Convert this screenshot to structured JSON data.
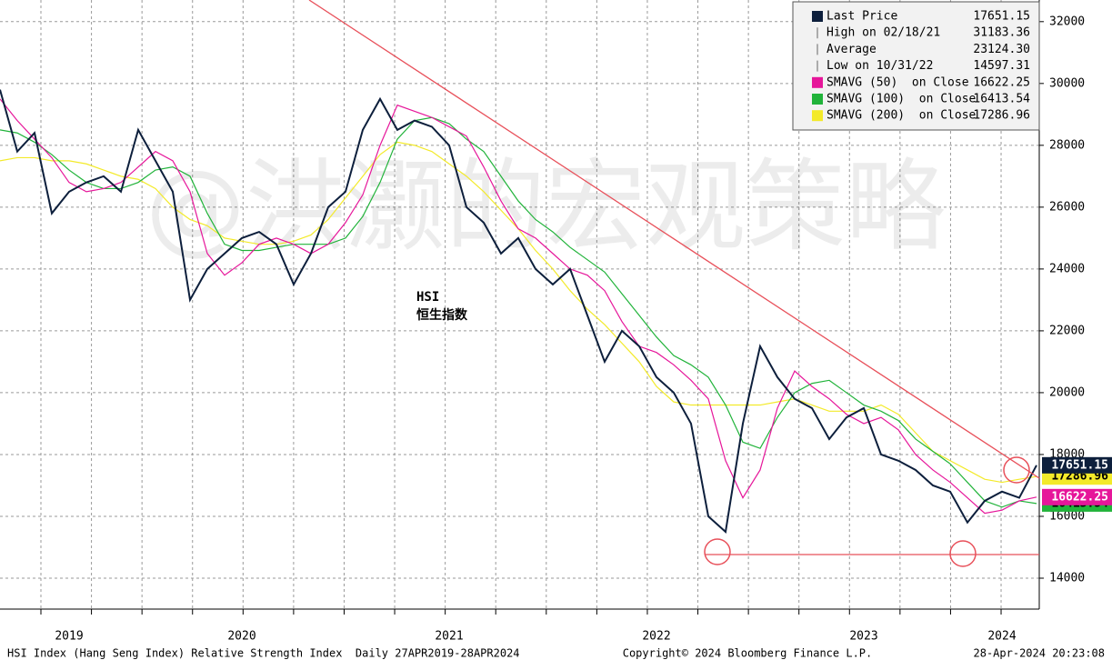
{
  "chart_data": {
    "type": "line",
    "label": "HSI",
    "label_cn": "恒生指数",
    "watermark": "@洪灏的宏观策略",
    "footer_left": "HSI Index (Hang Seng Index) Relative Strength Index  Daily 27APR2019-28APR2024",
    "footer_center": "Copyright© 2024 Bloomberg Finance L.P.",
    "footer_right": "28-Apr-2024 20:23:08",
    "categories": [
      null,
      null,
      null,
      null,
      "2019",
      null,
      null,
      null,
      null,
      null,
      null,
      null,
      null,
      null,
      "2020",
      null,
      null,
      null,
      null,
      null,
      null,
      null,
      null,
      null,
      null,
      null,
      "2021",
      null,
      null,
      null,
      null,
      null,
      null,
      null,
      null,
      null,
      null,
      null,
      "2022",
      null,
      null,
      null,
      null,
      null,
      null,
      null,
      null,
      null,
      null,
      null,
      "2023",
      null,
      null,
      null,
      null,
      null,
      null,
      null,
      "2024",
      null,
      null
    ],
    "series": [
      {
        "name": "Last Price",
        "color": "#0d1f3c",
        "legend_value": 17651.15,
        "values": [
          29800,
          27800,
          28400,
          25800,
          26500,
          26800,
          27000,
          26500,
          28500,
          27500,
          26500,
          23000,
          24000,
          24500,
          25000,
          25200,
          24800,
          23500,
          24500,
          26000,
          26500,
          28500,
          29500,
          28500,
          28800,
          28600,
          28000,
          26000,
          25500,
          24500,
          25000,
          24000,
          23500,
          24000,
          22500,
          21000,
          22000,
          21500,
          20500,
          20000,
          19000,
          16000,
          15500,
          19000,
          21500,
          20500,
          19800,
          19500,
          18500,
          19200,
          19500,
          18000,
          17800,
          17500,
          17000,
          16800,
          15800,
          16500,
          16800,
          16600,
          17651.15
        ]
      },
      {
        "name": "SMAVG (50)  on Close",
        "color": "#e6169a",
        "legend_value": 16622.25,
        "values": [
          29500,
          28800,
          28200,
          27600,
          26800,
          26500,
          26600,
          26800,
          27300,
          27800,
          27500,
          26500,
          24500,
          23800,
          24200,
          24800,
          25000,
          24800,
          24500,
          24800,
          25500,
          26400,
          28000,
          29300,
          29100,
          28900,
          28600,
          28300,
          27300,
          26200,
          25300,
          25000,
          24500,
          24000,
          23800,
          23300,
          22300,
          21500,
          21300,
          20900,
          20400,
          19800,
          17800,
          16600,
          17500,
          19500,
          20700,
          20200,
          19800,
          19300,
          19000,
          19200,
          18800,
          18000,
          17500,
          17100,
          16600,
          16100,
          16200,
          16500,
          16622.25
        ]
      },
      {
        "name": "SMAVG (100)  on Close",
        "color": "#21b33a",
        "legend_value": 16413.54,
        "values": [
          28500,
          28400,
          28100,
          27700,
          27200,
          26800,
          26600,
          26600,
          26800,
          27200,
          27300,
          27000,
          25800,
          24800,
          24600,
          24600,
          24700,
          24800,
          24800,
          24800,
          25000,
          25700,
          26800,
          28200,
          28800,
          28900,
          28700,
          28200,
          27800,
          27000,
          26200,
          25600,
          25200,
          24700,
          24300,
          23900,
          23200,
          22500,
          21800,
          21200,
          20900,
          20500,
          19600,
          18400,
          18200,
          19200,
          20000,
          20300,
          20400,
          20000,
          19600,
          19400,
          19100,
          18500,
          18100,
          17700,
          17100,
          16500,
          16300,
          16500,
          16413.54
        ]
      },
      {
        "name": "SMAVG (200)  on Close",
        "color": "#f3ea2a",
        "legend_value": 17286.96,
        "values": [
          27500,
          27600,
          27600,
          27500,
          27500,
          27400,
          27200,
          27000,
          26900,
          26600,
          26000,
          25600,
          25400,
          25000,
          24900,
          24800,
          24800,
          24900,
          25100,
          25600,
          26300,
          27000,
          27700,
          28100,
          28000,
          27800,
          27400,
          27000,
          26500,
          25900,
          25300,
          24600,
          24000,
          23300,
          22700,
          22200,
          21600,
          21000,
          20200,
          19700,
          19600,
          19600,
          19600,
          19600,
          19600,
          19700,
          19800,
          19600,
          19400,
          19400,
          19400,
          19600,
          19300,
          18700,
          18100,
          17800,
          17500,
          17200,
          17100,
          17200,
          17286.96
        ]
      }
    ],
    "stats": [
      {
        "label": "High on 02/18/21",
        "value": 31183.36
      },
      {
        "label": "Average",
        "value": 23124.3
      },
      {
        "label": "Low on 10/31/22",
        "value": 14597.31
      }
    ],
    "ylim": [
      13000,
      32700
    ],
    "yticks": [
      14000,
      16000,
      18000,
      20000,
      22000,
      24000,
      26000,
      28000,
      30000,
      32000
    ],
    "grid": true
  }
}
